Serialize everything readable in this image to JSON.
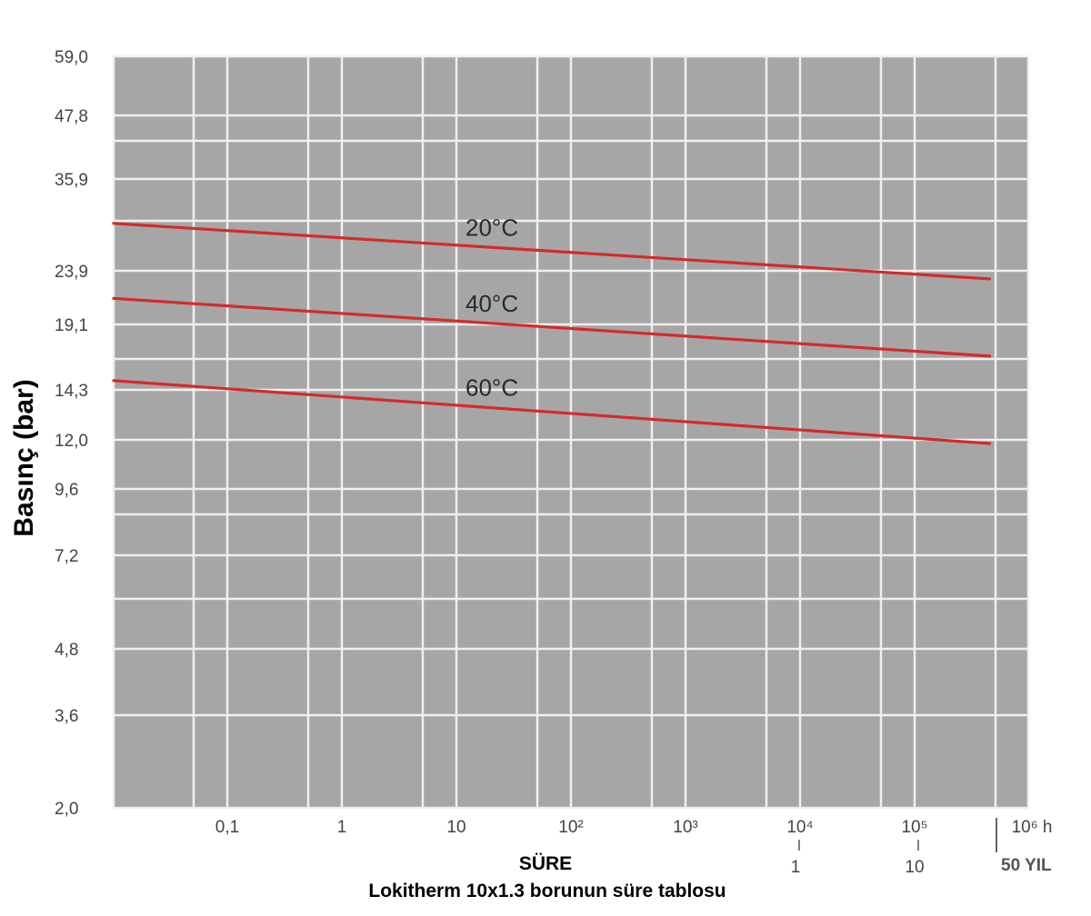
{
  "chart_data": {
    "type": "line",
    "title": "Lokitherm 10x1.3 borunun süre tablosu",
    "xlabel": "SÜRE",
    "ylabel": "Basınç (bar)",
    "x_unit": "h",
    "x_scale": "log",
    "y_scale": "log",
    "y_ticks": [
      "59,0",
      "47,8",
      "35,9",
      "23,9",
      "19,1",
      "14,3",
      "12,0",
      "9,6",
      "7,2",
      "4,8",
      "3,6",
      "2,0"
    ],
    "x_ticks_hours": [
      "0,1",
      "1",
      "10",
      "10²",
      "10³",
      "10⁴",
      "10⁵",
      "10⁶ h"
    ],
    "x_ticks_years": [
      "1",
      "10"
    ],
    "years_marker_label": "50 YIL",
    "series": [
      {
        "name": "20°C",
        "color": "#d42a2a",
        "x": [
          0.01,
          438000
        ],
        "y": [
          29.5,
          23.1
        ]
      },
      {
        "name": "40°C",
        "color": "#d42a2a",
        "x": [
          0.01,
          438000
        ],
        "y": [
          21.3,
          16.6
        ]
      },
      {
        "name": "60°C",
        "color": "#d42a2a",
        "x": [
          0.01,
          438000
        ],
        "y": [
          14.9,
          11.8
        ]
      }
    ],
    "grid": true,
    "colors": {
      "plot_background": "#a6a6a6",
      "grid": "#efefef",
      "curve": "#d42a2a"
    }
  }
}
